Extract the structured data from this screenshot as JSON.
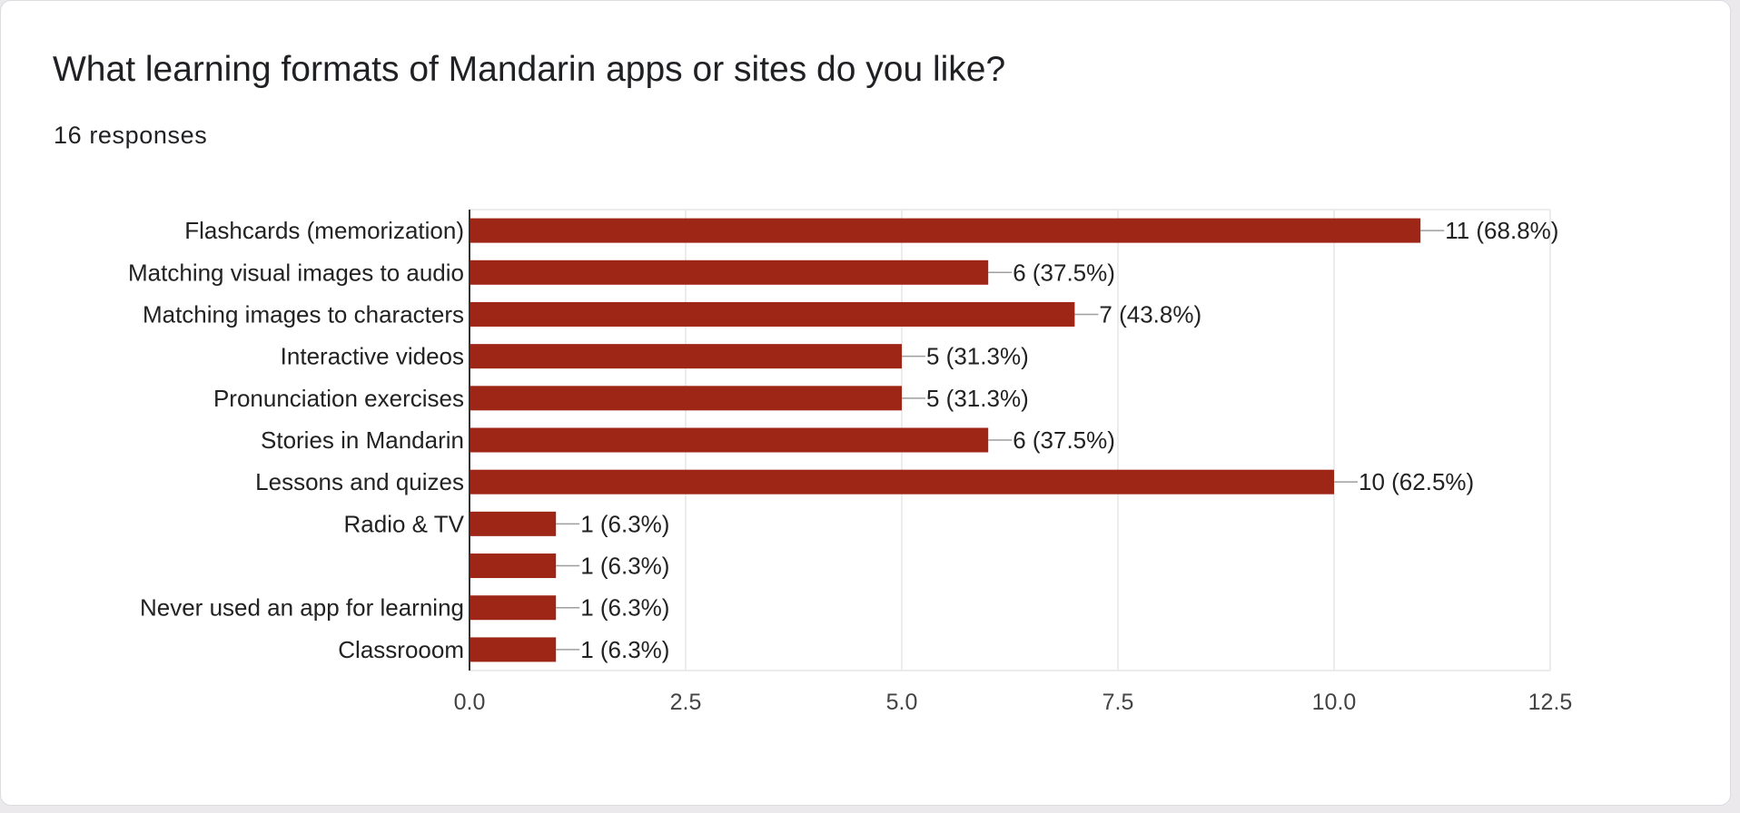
{
  "question": {
    "title": "What learning formats of Mandarin apps or sites do you like?",
    "responses": "16 responses"
  },
  "colors": {
    "bar": "#9e2617",
    "grid": "#e6e6e6",
    "axis": "#333333",
    "leader": "#9e9e9e",
    "text": "#222222"
  },
  "chart_data": {
    "type": "bar",
    "orientation": "horizontal",
    "title": "",
    "xlabel": "",
    "ylabel": "",
    "categories": [
      "Flashcards (memorization)",
      "Matching visual images to audio",
      "Matching images to characters",
      "Interactive videos",
      "Pronunciation exercises",
      "Stories in Mandarin",
      "Lessons and quizes",
      "Radio & TV",
      "",
      "Never used an app for learning",
      "Classrooom"
    ],
    "values": [
      11,
      6,
      7,
      5,
      5,
      6,
      10,
      1,
      1,
      1,
      1
    ],
    "value_labels": [
      "11 (68.8%)",
      "6 (37.5%)",
      "7 (43.8%)",
      "5 (31.3%)",
      "5 (31.3%)",
      "6 (37.5%)",
      "10 (62.5%)",
      "1 (6.3%)",
      "1 (6.3%)",
      "1 (6.3%)",
      "1 (6.3%)"
    ],
    "xlim": [
      0,
      12.5
    ],
    "xticks": [
      0,
      2.5,
      5,
      7.5,
      10,
      12.5
    ],
    "xtick_labels": [
      "0.0",
      "2.5",
      "5.0",
      "7.5",
      "10.0",
      "12.5"
    ],
    "grid": true,
    "legend": "none"
  }
}
